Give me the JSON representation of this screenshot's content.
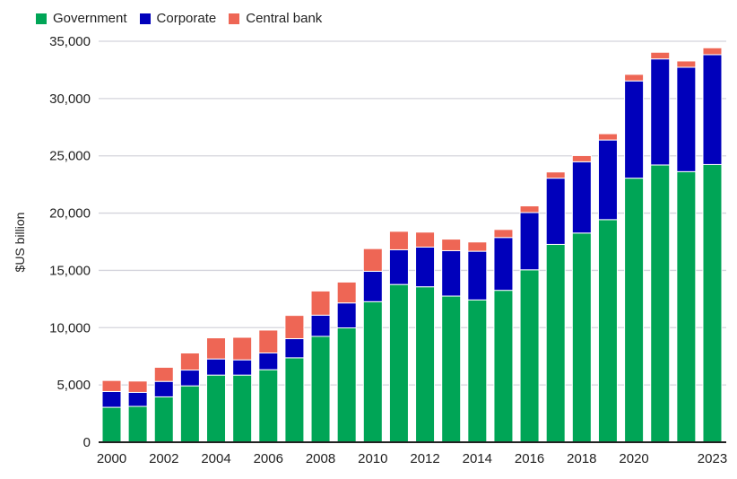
{
  "chart_data": {
    "type": "bar",
    "stacked": true,
    "title": "",
    "xlabel": "",
    "ylabel": "$US billion",
    "ylim": [
      0,
      35000
    ],
    "yticks": [
      0,
      5000,
      10000,
      15000,
      20000,
      25000,
      30000,
      35000
    ],
    "ytick_labels": [
      "0",
      "5,000",
      "10,000",
      "15,000",
      "20,000",
      "25,000",
      "30,000",
      "35,000"
    ],
    "xtick_labels": [
      "2000",
      "2002",
      "2004",
      "2006",
      "2008",
      "2010",
      "2012",
      "2014",
      "2016",
      "2018",
      "2020",
      "2023"
    ],
    "grid": true,
    "legend_position": "top-left",
    "categories": [
      "2000",
      "2001",
      "2002",
      "2003",
      "2004",
      "2005",
      "2006",
      "2007",
      "2008",
      "2009",
      "2010",
      "2011",
      "2012",
      "2013",
      "2014",
      "2015",
      "2016",
      "2017",
      "2018",
      "2019",
      "2020",
      "2021",
      "2022",
      "2023"
    ],
    "series": [
      {
        "name": "Government",
        "color": "#00a556",
        "values": [
          3050,
          3130,
          3960,
          4920,
          5860,
          5860,
          6330,
          7370,
          9240,
          9980,
          12270,
          13770,
          13570,
          12760,
          12420,
          13260,
          15050,
          17270,
          18260,
          19430,
          23050,
          24200,
          23620,
          24240
        ]
      },
      {
        "name": "Corporate",
        "color": "#0000bb",
        "values": [
          1380,
          1220,
          1350,
          1380,
          1410,
          1330,
          1460,
          1670,
          1850,
          2180,
          2650,
          3030,
          3460,
          3960,
          4250,
          4610,
          5000,
          5780,
          6220,
          6950,
          8490,
          9260,
          9110,
          9590
        ]
      },
      {
        "name": "Central bank",
        "color": "#ee6655",
        "values": [
          960,
          990,
          1230,
          1490,
          1840,
          1970,
          2000,
          2030,
          2110,
          1820,
          1980,
          1610,
          1310,
          1010,
          810,
          700,
          580,
          540,
          540,
          550,
          570,
          580,
          550,
          600
        ]
      }
    ]
  }
}
